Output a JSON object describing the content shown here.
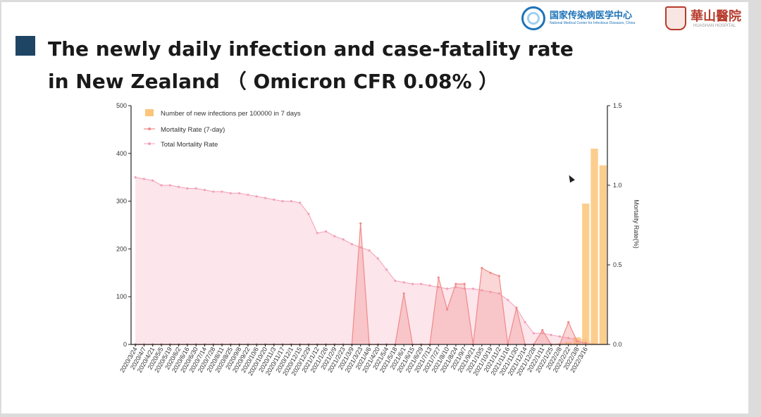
{
  "slide": {
    "title_line1": "The newly daily infection and case-fatality rate",
    "title_line2": "in New Zealand （ Omicron CFR 0.08% ）",
    "accent_color": "#1f4565"
  },
  "logos": {
    "nmcid_cn": "国家传染病医学中心",
    "nmcid_en": "National Medical Center for Infectious Diseases, China",
    "huashan_cn": "華山醫院",
    "huashan_en": "HUASHAN HOSPITAL"
  },
  "chart_data": {
    "type": "bar+line+area",
    "title": "",
    "left_axis": {
      "ticks": [
        0,
        100,
        200,
        300,
        400,
        500
      ],
      "ylim": [
        0,
        500
      ]
    },
    "right_axis": {
      "label": "Mortality Rate(%)",
      "ticks": [
        "0.0",
        "0.5",
        "1.0",
        "1.5"
      ],
      "ylim": [
        0,
        1.5
      ]
    },
    "legend": {
      "position": "top-left",
      "entries": [
        "Number of new infections per 100000 in 7 days",
        "Mortality Rate (7-day)",
        "Total Mortality Rate"
      ]
    },
    "x_labels": [
      "2020/3/24",
      "2020/4/7",
      "2020/4/21",
      "2020/5/5",
      "2020/5/19",
      "2020/6/2",
      "2020/6/16",
      "2020/6/30",
      "2020/7/14",
      "2020/7/28",
      "2020/8/11",
      "2020/8/25",
      "2020/9/8",
      "2020/9/22",
      "2020/10/6",
      "2020/10/20",
      "2020/11/3",
      "2020/11/17",
      "2020/12/1",
      "2020/12/15",
      "2020/12/29",
      "2021/1/12",
      "2021/1/26",
      "2021/2/9",
      "2021/2/23",
      "2021/3/9",
      "2021/3/23",
      "2021/4/6",
      "2021/4/20",
      "2021/5/4",
      "2021/5/18",
      "2021/6/1",
      "2021/6/15",
      "2021/6/29",
      "2021/7/13",
      "2021/7/27",
      "2021/8/10",
      "2021/8/24",
      "2021/9/7",
      "2021/9/21",
      "2021/10/5",
      "2021/10/19",
      "2021/11/2",
      "2021/11/16",
      "2021/11/30",
      "2021/12/14",
      "2021/12/28",
      "2022/1/11",
      "2022/1/25",
      "2022/2/8",
      "2022/2/22",
      "2022/3/8",
      "2022/3/16"
    ],
    "series": [
      {
        "name": "Number of new infections per 100000 in 7 days",
        "kind": "bar",
        "axis": "left",
        "color": "#fbc57a",
        "values": [
          0,
          0,
          0,
          0,
          0,
          0,
          0,
          0,
          0,
          0,
          0,
          0,
          0,
          0,
          0,
          0,
          0,
          0,
          0,
          0,
          0,
          0,
          0,
          0,
          0,
          0,
          0,
          0,
          0,
          0,
          0,
          0,
          0,
          0,
          0,
          0,
          0,
          0,
          0,
          0,
          0,
          0,
          0,
          0,
          0,
          0,
          0,
          0,
          0,
          2,
          5,
          15,
          295,
          410,
          375
        ]
      },
      {
        "name": "Mortality Rate (7-day)",
        "kind": "line",
        "axis": "right",
        "color": "#f08a8a",
        "values": [
          0,
          0,
          0,
          0,
          0,
          0,
          0,
          0,
          0,
          0,
          0,
          0,
          0,
          0,
          0,
          0,
          0,
          0,
          0,
          0,
          0,
          0,
          0,
          0,
          0,
          0,
          0.76,
          0,
          0,
          0,
          0,
          0.32,
          0,
          0,
          0,
          0.42,
          0.22,
          0.38,
          0.38,
          0,
          0.48,
          0.45,
          0.43,
          0,
          0.23,
          0,
          0,
          0.09,
          0,
          0,
          0.14,
          0.02,
          0.01
        ]
      },
      {
        "name": "Total Mortality Rate",
        "kind": "area",
        "axis": "right",
        "color": "#f3a0b6",
        "values": [
          1.05,
          1.04,
          1.03,
          1.0,
          1.0,
          0.99,
          0.98,
          0.98,
          0.97,
          0.96,
          0.96,
          0.95,
          0.95,
          0.94,
          0.93,
          0.92,
          0.91,
          0.9,
          0.9,
          0.89,
          0.82,
          0.7,
          0.71,
          0.68,
          0.66,
          0.63,
          0.61,
          0.59,
          0.54,
          0.47,
          0.4,
          0.39,
          0.38,
          0.38,
          0.37,
          0.36,
          0.35,
          0.36,
          0.35,
          0.35,
          0.34,
          0.33,
          0.32,
          0.28,
          0.23,
          0.14,
          0.07,
          0.07,
          0.06,
          0.05,
          0.04,
          0.03,
          0.03
        ]
      }
    ]
  }
}
